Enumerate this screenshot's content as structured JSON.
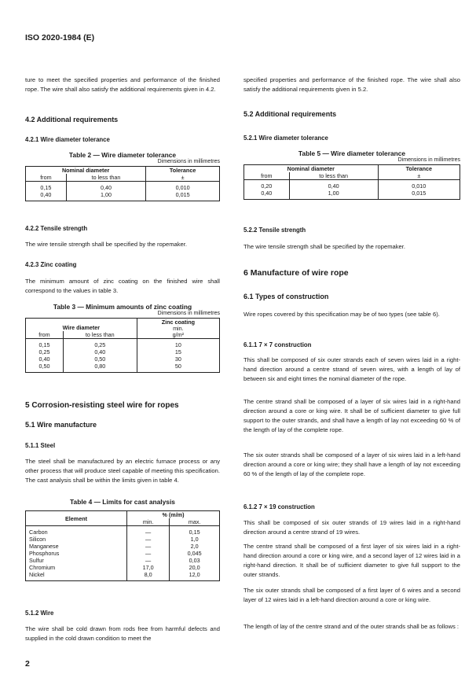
{
  "header": {
    "doc_id": "ISO 2020-1984 (E)",
    "page_number": "2"
  },
  "left": {
    "p1": "ture to meet the specified properties and performance of the finished rope. The wire shall also satisfy the additional requirements given in 4.2.",
    "s42": "4.2   Additional requirements",
    "s421": "4.2.1   Wire diameter tolerance",
    "t2": {
      "caption": "Table 2 — Wire diameter tolerance",
      "dims": "Dimensions in millimetres",
      "h_nominal": "Nominal diameter",
      "h_from": "from",
      "h_to": "to less than",
      "h_tol": "Tolerance",
      "h_pm": "±",
      "rows": [
        [
          "0,15",
          "0,40",
          "0,010"
        ],
        [
          "0,40",
          "1,00",
          "0,015"
        ]
      ]
    },
    "s422": "4.2.2   Tensile strength",
    "p422": "The wire tensile strength shall be specified by the ropemaker.",
    "s423": "4.2.3   Zinc coating",
    "p423": "The minimum amount of zinc coating on the finished wire shall correspond to the values in table 3.",
    "t3": {
      "caption": "Table 3 — Minimum amounts of zinc coating",
      "dims": "Dimensions in millimetres",
      "h_wire": "Wire diameter",
      "h_from": "from",
      "h_to": "to less than",
      "h_zinc": "Zinc coating",
      "h_min": "min.",
      "h_unit": "g/m²",
      "rows": [
        [
          "0,15",
          "0,25",
          "10"
        ],
        [
          "0,25",
          "0,40",
          "15"
        ],
        [
          "0,40",
          "0,50",
          "30"
        ],
        [
          "0,50",
          "0,80",
          "50"
        ]
      ]
    },
    "s5": "5   Corrosion-resisting steel wire for ropes",
    "s51": "5.1   Wire manufacture",
    "s511": "5.1.1   Steel",
    "p511": "The steel shall be manufactured by an electric furnace process or any other process that will produce steel capable of meeting this specification. The cast analysis shall be within the limits given in table 4.",
    "t4": {
      "caption": "Table 4 — Limits for cast analysis",
      "h_el": "Element",
      "h_pct": "% (m/m)",
      "h_min": "min.",
      "h_max": "max.",
      "rows": [
        [
          "Carbon",
          "—",
          "0,15"
        ],
        [
          "Silicon",
          "—",
          "1,0"
        ],
        [
          "Manganese",
          "—",
          "2,0"
        ],
        [
          "Phosphorus",
          "—",
          "0,045"
        ],
        [
          "Sulfur",
          "—",
          "0,03"
        ],
        [
          "Chromium",
          "17,0",
          "20,0"
        ],
        [
          "Nickel",
          "8,0",
          "12,0"
        ]
      ]
    },
    "s512": "5.1.2   Wire",
    "p512": "The wire shall be cold drawn from rods free from harmful defects and supplied in the cold drawn condition to meet the"
  },
  "right": {
    "p1": "specified properties and performance of the finished rope. The wire shall also satisfy the additional requirements given in 5.2.",
    "s52": "5.2   Additional requirements",
    "s521": "5.2.1   Wire diameter tolerance",
    "t5": {
      "caption": "Table 5 — Wire diameter tolerance",
      "dims": "Dimensions in millimetres",
      "h_nominal": "Nominal diameter",
      "h_from": "from",
      "h_to": "to less than",
      "h_tol": "Tolerance",
      "h_pm": "±",
      "rows": [
        [
          "0,20",
          "0,40",
          "0,010"
        ],
        [
          "0,40",
          "1,00",
          "0,015"
        ]
      ]
    },
    "s522": "5.2.2   Tensile strength",
    "p522": "The wire tensile strength shall be specified by the ropemaker.",
    "s6": "6   Manufacture of wire rope",
    "s61": "6.1   Types of construction",
    "p61": "Wire ropes covered by this specification may be of two types (see table 6).",
    "s611": "6.1.1   7 × 7 construction",
    "p611a": "This shall be composed of six outer strands each of seven wires laid in a right-hand direction around a centre strand of seven wires, with a length of lay of between six and eight times the nominal diameter of the rope.",
    "p611b": "The centre strand shall be composed of a layer of six wires laid in a right-hand direction around a core or king wire. It shall be of sufficient diameter to give full support to the outer strands, and shall have a length of lay not exceeding 60 % of the length of lay of the complete rope.",
    "p611c": "The six outer strands shall be composed of a layer of six wires laid in a left-hand direction around a core or king wire; they shall have a length of lay not exceeding 60 % of the length of lay of the complete rope.",
    "s612": "6.1.2   7 × 19 construction",
    "p612a": "This shall be composed of six outer strands of 19 wires laid in a right-hand direction around a centre strand of 19 wires.",
    "p612b": "The centre strand shall be composed of a first layer of six wires laid in a right-hand direction around a core or king wire, and a second layer of 12 wires laid in a right-hand direction. It shall be of sufficient diameter to give full support to the outer strands.",
    "p612c": "The six outer strands shall be composed of a first layer of 6 wires and a second layer of 12 wires laid in a left-hand direction around a core or king wire.",
    "p612d": "The length of lay of the centre strand and of the outer strands shall be as follows :"
  }
}
